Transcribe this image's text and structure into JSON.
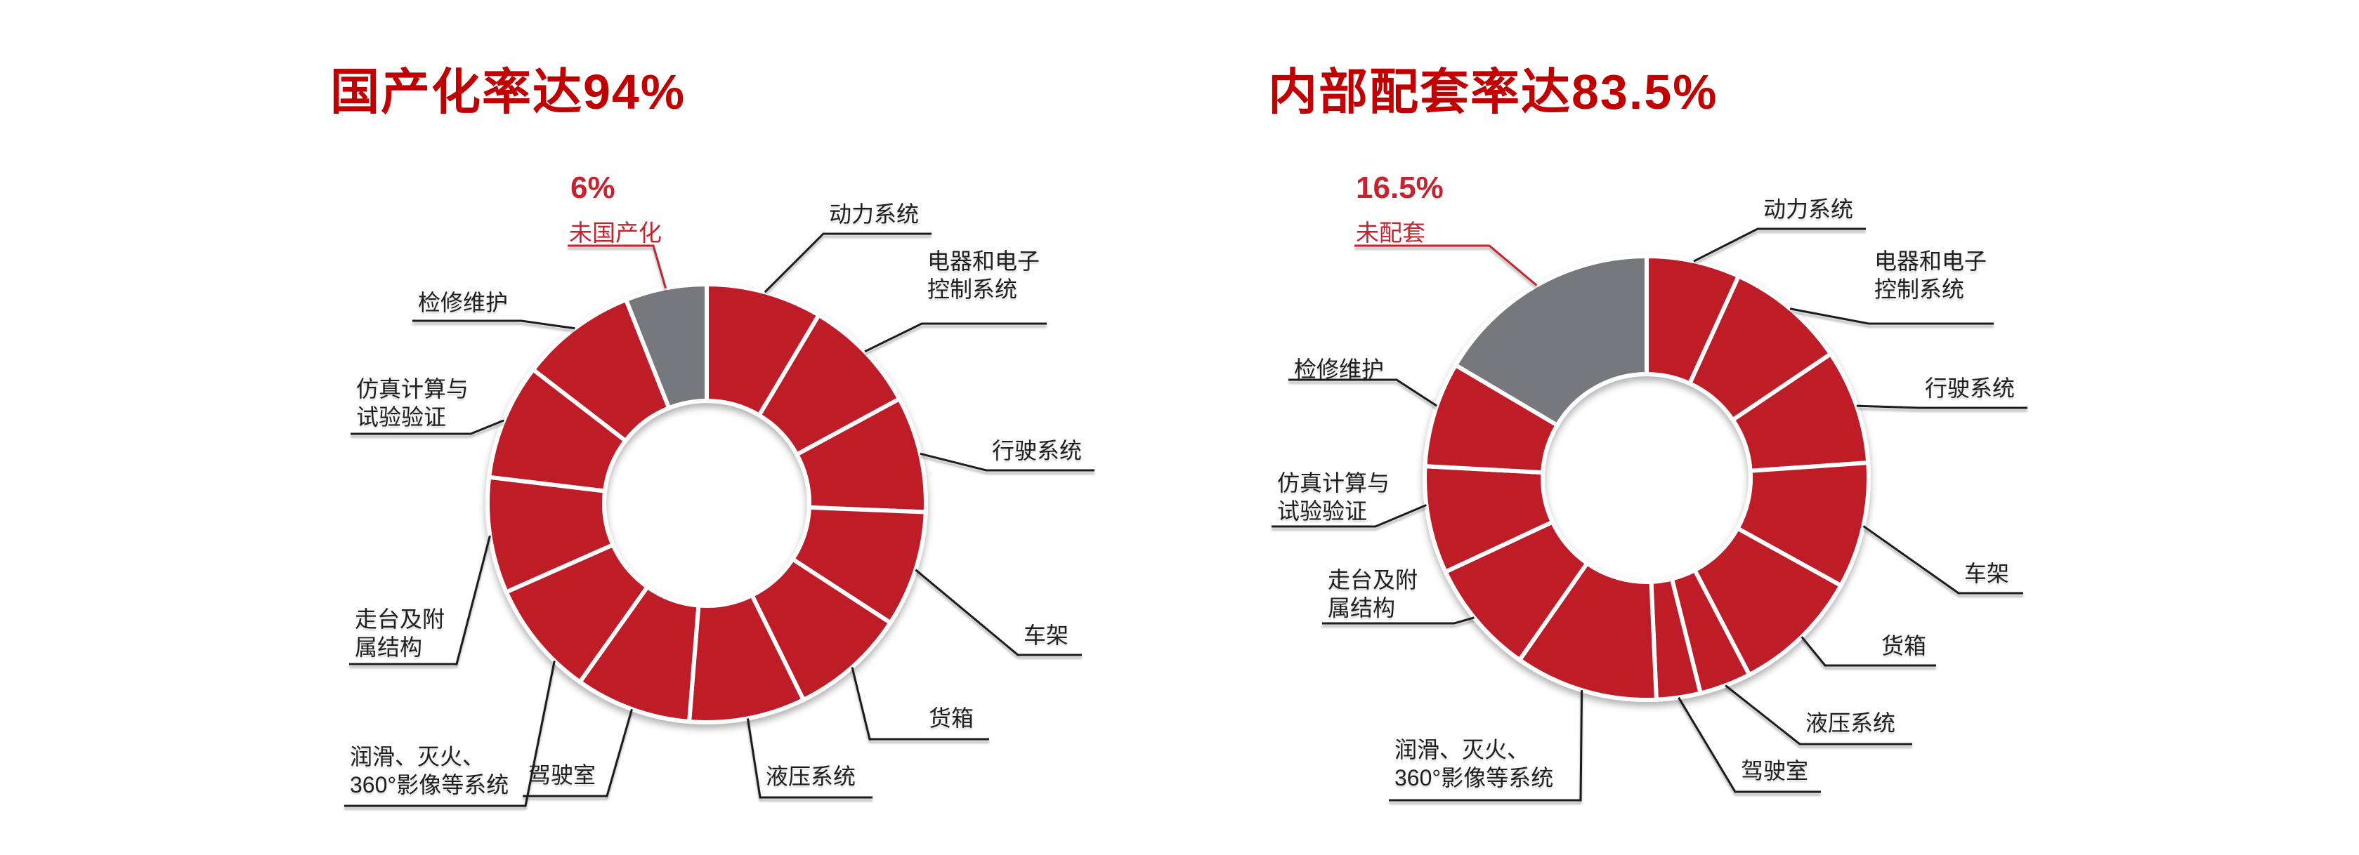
{
  "page": {
    "background": "#FFFFFF"
  },
  "colors": {
    "slice_red": "#BE1B28",
    "slice_gray": "#77787B",
    "title_red": "#C00000",
    "callout_red": "#C5232F",
    "leader_line": "#1A1A1A",
    "label_text": "#1F1F1F",
    "slice_gap": "#FFFFFF"
  },
  "chart_data": [
    {
      "type": "pie",
      "subtype": "donut",
      "title": "国产化率达94%",
      "highlight": {
        "percent": "6%",
        "label": "未国产化"
      },
      "legend_position": "none",
      "slices": [
        {
          "label": "动力系统",
          "lines": [
            "动力系统"
          ],
          "value": 8.545,
          "color": "#BE1B28"
        },
        {
          "label": "电器和电子控制系统",
          "lines": [
            "电器和电子",
            "控制系统"
          ],
          "value": 8.545,
          "color": "#BE1B28"
        },
        {
          "label": "行驶系统",
          "lines": [
            "行驶系统"
          ],
          "value": 8.545,
          "color": "#BE1B28"
        },
        {
          "label": "车架",
          "lines": [
            "车架"
          ],
          "value": 8.545,
          "color": "#BE1B28"
        },
        {
          "label": "货箱",
          "lines": [
            "货箱"
          ],
          "value": 8.545,
          "color": "#BE1B28"
        },
        {
          "label": "液压系统",
          "lines": [
            "液压系统"
          ],
          "value": 8.545,
          "color": "#BE1B28"
        },
        {
          "label": "驾驶室",
          "lines": [
            "驾驶室"
          ],
          "value": 8.545,
          "color": "#BE1B28"
        },
        {
          "label": "润滑、灭火、360°影像等系统",
          "lines": [
            "润滑、灭火、",
            "360°影像等系统"
          ],
          "value": 8.545,
          "color": "#BE1B28"
        },
        {
          "label": "走台及附属结构",
          "lines": [
            "走台及附",
            "属结构"
          ],
          "value": 8.545,
          "color": "#BE1B28"
        },
        {
          "label": "仿真计算与试验验证",
          "lines": [
            "仿真计算与",
            "试验验证"
          ],
          "value": 8.545,
          "color": "#BE1B28"
        },
        {
          "label": "检修维护",
          "lines": [
            "检修维护"
          ],
          "value": 8.545,
          "color": "#BE1B28"
        },
        {
          "label": "未国产化",
          "lines": [],
          "value": 6.0,
          "color": "#77787B"
        }
      ]
    },
    {
      "type": "pie",
      "subtype": "donut",
      "title": "内部配套率达83.5%",
      "highlight": {
        "percent": "16.5%",
        "label": "未配套"
      },
      "legend_position": "none",
      "slices": [
        {
          "label": "动力系统",
          "lines": [
            "动力系统"
          ],
          "value": 6.8,
          "color": "#BE1B28"
        },
        {
          "label": "电器和电子控制系统",
          "lines": [
            "电器和电子",
            "控制系统"
          ],
          "value": 8.75,
          "color": "#BE1B28"
        },
        {
          "label": "行驶系统",
          "lines": [
            "行驶系统"
          ],
          "value": 8.35,
          "color": "#BE1B28"
        },
        {
          "label": "车架",
          "lines": [
            "车架"
          ],
          "value": 9.15,
          "color": "#BE1B28"
        },
        {
          "label": "货箱",
          "lines": [
            "货箱"
          ],
          "value": 9.3,
          "color": "#BE1B28"
        },
        {
          "label": "液压系统",
          "lines": [
            "液压系统"
          ],
          "value": 3.75,
          "color": "#BE1B28"
        },
        {
          "label": "驾驶室",
          "lines": [
            "驾驶室"
          ],
          "value": 3.2,
          "color": "#BE1B28"
        },
        {
          "label": "润滑、灭火、360°影像等系统",
          "lines": [
            "润滑、灭火、",
            "360°影像等系统"
          ],
          "value": 10.4,
          "color": "#BE1B28"
        },
        {
          "label": "走台及附属结构",
          "lines": [
            "走台及附",
            "属结构"
          ],
          "value": 8.35,
          "color": "#BE1B28"
        },
        {
          "label": "仿真计算与试验验证",
          "lines": [
            "仿真计算与",
            "试验验证"
          ],
          "value": 7.8,
          "color": "#BE1B28"
        },
        {
          "label": "检修维护",
          "lines": [
            "检修维护"
          ],
          "value": 7.65,
          "color": "#BE1B28"
        },
        {
          "label": "未配套",
          "lines": [],
          "value": 16.5,
          "color": "#77787B"
        }
      ]
    }
  ]
}
